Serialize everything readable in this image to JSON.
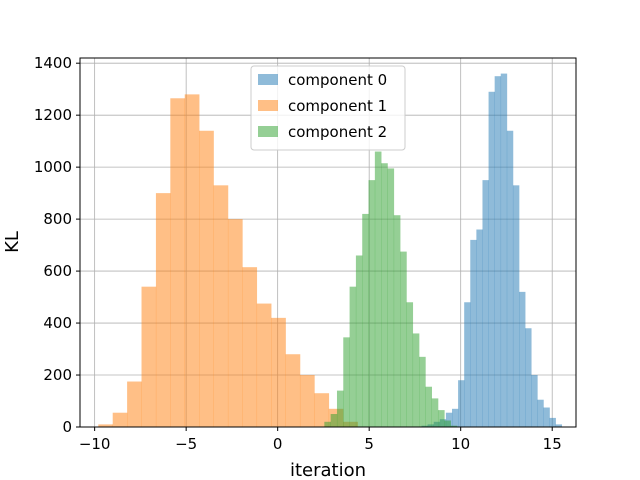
{
  "chart_data": {
    "type": "bar",
    "subtype": "histogram",
    "title": "",
    "xlabel": "iteration",
    "ylabel": "KL",
    "xlim": [
      -10.8,
      16.3
    ],
    "ylim": [
      0,
      1420
    ],
    "xticks": [
      -10,
      -5,
      0,
      5,
      10,
      15
    ],
    "xtick_labels": [
      "−10",
      "−5",
      "0",
      "5",
      "10",
      "15"
    ],
    "yticks": [
      0,
      200,
      400,
      600,
      800,
      1000,
      1200,
      1400
    ],
    "ytick_labels": [
      "0",
      "200",
      "400",
      "600",
      "800",
      "1000",
      "1200",
      "1400"
    ],
    "grid": true,
    "legend": "top-center",
    "alpha": 0.5,
    "series": [
      {
        "name": "component 0",
        "color": "#1f77b4",
        "bin_start": 7.86,
        "bin_width": 0.333,
        "counts": [
          5,
          10,
          20,
          30,
          55,
          70,
          180,
          480,
          720,
          760,
          950,
          1290,
          1350,
          1360,
          1140,
          930,
          520,
          380,
          200,
          105,
          75,
          35,
          10
        ]
      },
      {
        "name": "component 1",
        "color": "#ff7f0e",
        "bin_start": -9.8,
        "bin_width": 0.787,
        "counts": [
          10,
          55,
          175,
          540,
          900,
          1265,
          1280,
          1140,
          930,
          800,
          615,
          475,
          420,
          280,
          200,
          130,
          70,
          20
        ]
      },
      {
        "name": "component 2",
        "color": "#2ca02c",
        "bin_start": 2.55,
        "bin_width": 0.345,
        "counts": [
          20,
          50,
          140,
          345,
          540,
          660,
          820,
          950,
          1060,
          1015,
          995,
          815,
          675,
          480,
          360,
          270,
          155,
          110,
          65,
          25,
          5
        ]
      }
    ]
  }
}
